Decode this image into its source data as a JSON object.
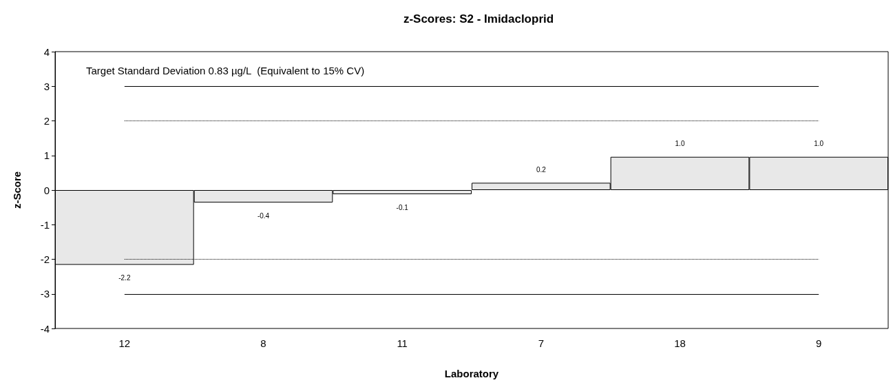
{
  "chart_data": {
    "type": "bar",
    "title": "z-Scores: S2 - Imidacloprid",
    "xlabel": "Laboratory",
    "ylabel": "z-Score",
    "categories": [
      "12",
      "8",
      "11",
      "7",
      "18",
      "9"
    ],
    "values": [
      -2.16,
      -0.36,
      -0.12,
      0.21,
      0.96,
      0.96
    ],
    "value_labels": [
      "-2.2",
      "-0.4",
      "-0.1",
      "0.2",
      "1.0",
      "1.0"
    ],
    "color": "#e8e8e8",
    "ylim": [
      -4,
      4
    ],
    "yticks": [
      -4,
      -3,
      -2,
      -1,
      0,
      1,
      2,
      3,
      4
    ],
    "grid": false,
    "annotations": [
      "Target Standard Deviation 0.83 µg/L  (Equivalent to 15% CV)"
    ],
    "ref_lines": [
      {
        "axis": "y",
        "value": 3,
        "line_style": "solid",
        "color": "#000000"
      },
      {
        "axis": "y",
        "value": 2,
        "line_style": "dotted",
        "color": "#000000"
      },
      {
        "axis": "y",
        "value": -2,
        "line_style": "dotted",
        "color": "#000000"
      },
      {
        "axis": "y",
        "value": -3,
        "line_style": "solid",
        "color": "#000000"
      }
    ]
  }
}
